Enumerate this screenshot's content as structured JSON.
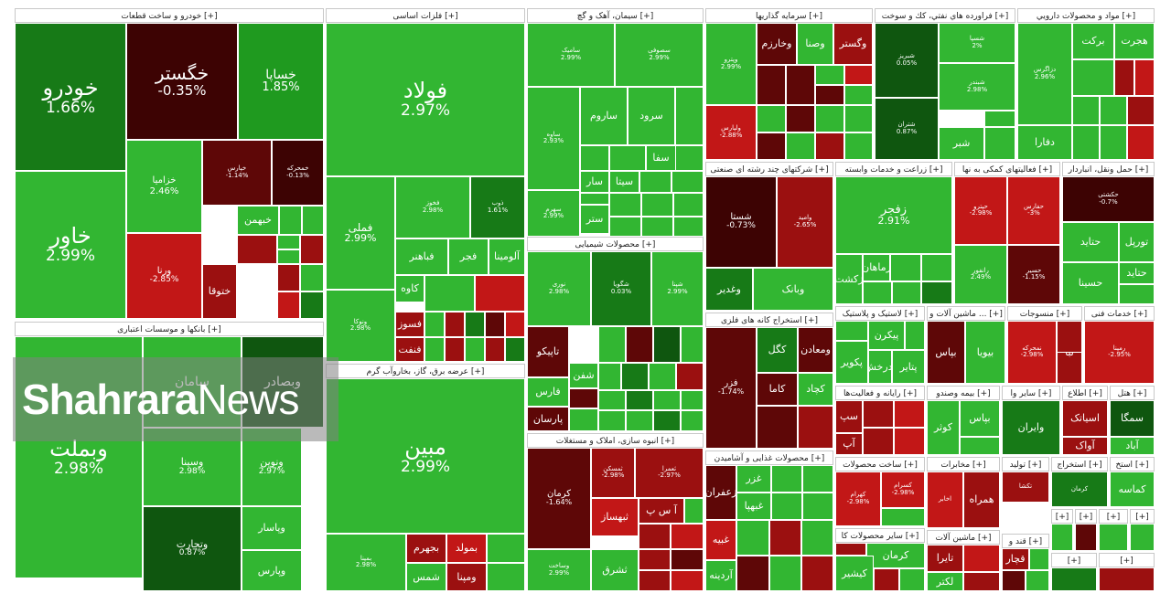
{
  "colors": {
    "g3": "#32b632",
    "g2": "#1f9a1f",
    "g1": "#177a17",
    "g0": "#0f560f",
    "r1": "#c21717",
    "r2": "#9b1010",
    "r3": "#5e0707",
    "r4": "#3d0303"
  },
  "watermark": {
    "bold": "Shahrara",
    "regular": "News"
  },
  "sectors": [
    {
      "header": "خودرو و ساخت قطعات [+]",
      "tiles": [
        {
          "name": "خودرو",
          "pct": "1.66%",
          "color": "g1"
        },
        {
          "name": "خاور",
          "pct": "2.99%",
          "color": "g3"
        },
        {
          "name": "خگستر",
          "pct": "-0.35%",
          "color": "r4"
        },
        {
          "name": "خساپا",
          "pct": "1.85%",
          "color": "g2"
        },
        {
          "name": "خزامیا",
          "pct": "2.46%",
          "color": "g3"
        },
        {
          "name": "خپارس",
          "pct": "-1.14%",
          "color": "r3"
        },
        {
          "name": "خمحرکه",
          "pct": "-0.13%",
          "color": "r4"
        },
        {
          "name": "ورنا",
          "pct": "-2.85%",
          "color": "r1"
        },
        {
          "name": "ختوقا",
          "pct": "",
          "color": "r2"
        },
        {
          "name": "خبهمن",
          "pct": "",
          "color": "g3"
        }
      ]
    },
    {
      "header": "بانکها و موسسات اعتباری [+]",
      "tiles": [
        {
          "name": "وبملت",
          "pct": "2.98%",
          "color": "g3"
        },
        {
          "name": "سامان",
          "pct": "",
          "color": "g3"
        },
        {
          "name": "وبصادر",
          "pct": "",
          "color": "g0"
        },
        {
          "name": "وسینا",
          "pct": "2.98%",
          "color": "g3"
        },
        {
          "name": "ونوین",
          "pct": "2.97%",
          "color": "g3"
        },
        {
          "name": "وتجارت",
          "pct": "0.87%",
          "color": "g0"
        },
        {
          "name": "وپاسار",
          "pct": "",
          "color": "g3"
        },
        {
          "name": "وپارس",
          "pct": "",
          "color": "g3"
        }
      ]
    },
    {
      "header": "فلزات اساسی [+]",
      "tiles": [
        {
          "name": "فولاد",
          "pct": "2.97%",
          "color": "g3"
        },
        {
          "name": "فملی",
          "pct": "2.99%",
          "color": "g3"
        },
        {
          "name": "فخوز",
          "pct": "2.98%",
          "color": "g3"
        },
        {
          "name": "ذوب",
          "pct": "1.61%",
          "color": "g1"
        },
        {
          "name": "ونوکا",
          "pct": "2.98%",
          "color": "g3"
        },
        {
          "name": "فباهنر",
          "pct": "",
          "color": "g3"
        },
        {
          "name": "فجر",
          "pct": "",
          "color": "g3"
        },
        {
          "name": "آلومینا",
          "pct": "",
          "color": "g3"
        },
        {
          "name": "کاوه",
          "pct": "",
          "color": "g3"
        },
        {
          "name": "فسوز",
          "pct": "",
          "color": "r2"
        },
        {
          "name": "فنفت",
          "pct": "",
          "color": "r2"
        }
      ]
    },
    {
      "header": "سیمان، آهک و گچ [+]",
      "tiles": [
        {
          "name": "سامیک",
          "pct": "2.99%",
          "color": "g3"
        },
        {
          "name": "سصوفی",
          "pct": "2.99%",
          "color": "g3"
        },
        {
          "name": "ساوه",
          "pct": "2.93%",
          "color": "g3"
        },
        {
          "name": "ساروم",
          "pct": "",
          "color": "g3"
        },
        {
          "name": "سرود",
          "pct": "",
          "color": "g3"
        },
        {
          "name": "سفا",
          "pct": "",
          "color": "g3"
        },
        {
          "name": "سیتا",
          "pct": "",
          "color": "g3"
        },
        {
          "name": "سار",
          "pct": "",
          "color": "g3"
        },
        {
          "name": "ستر",
          "pct": "",
          "color": "g3"
        },
        {
          "name": "سهرم",
          "pct": "2.99%",
          "color": "g3"
        }
      ]
    },
    {
      "header": "محصولات شیمیایی [+]",
      "tiles": [
        {
          "name": "نوری",
          "pct": "2.98%",
          "color": "g3"
        },
        {
          "name": "شگویا",
          "pct": "0.03%",
          "color": "g1"
        },
        {
          "name": "شپنا",
          "pct": "2.99%",
          "color": "g3"
        },
        {
          "name": "تاپیکو",
          "pct": "",
          "color": "r3"
        },
        {
          "name": "شفن",
          "pct": "",
          "color": "g3"
        },
        {
          "name": "فارس",
          "pct": "",
          "color": "g3"
        },
        {
          "name": "پارسان",
          "pct": "",
          "color": "r3"
        }
      ]
    },
    {
      "header": "عرضه برق، گاز، بخاروآب گرم [+]",
      "tiles": [
        {
          "name": "مبین",
          "pct": "2.99%",
          "color": "g3"
        },
        {
          "name": "بمپنا",
          "pct": "2.98%",
          "color": "g3"
        },
        {
          "name": "بجهرم",
          "pct": "",
          "color": "r2"
        },
        {
          "name": "بمولد",
          "pct": "",
          "color": "r1"
        },
        {
          "name": "شمس",
          "pct": "",
          "color": "g3"
        },
        {
          "name": "ومپنا",
          "pct": "",
          "color": "r2"
        }
      ]
    },
    {
      "header": "انبوه سازی، املاک و مستغلات [+]",
      "tiles": [
        {
          "name": "کرمان",
          "pct": "-1.64%",
          "color": "r3"
        },
        {
          "name": "ثمسکن",
          "pct": "-2.98%",
          "color": "r2"
        },
        {
          "name": "ثعمرا",
          "pct": "-2.97%",
          "color": "r2"
        },
        {
          "name": "ثبهساز",
          "pct": "",
          "color": "r1"
        },
        {
          "name": "آ س پ",
          "pct": "",
          "color": "r2"
        },
        {
          "name": "ثشرق",
          "pct": "",
          "color": "g3"
        },
        {
          "name": "وساخت",
          "pct": "2.99%",
          "color": "g3"
        }
      ]
    },
    {
      "header": "سرمایه گذاریها [+]",
      "tiles": [
        {
          "name": "وپترو",
          "pct": "2.99%",
          "color": "g3"
        },
        {
          "name": "وخارزم",
          "pct": "",
          "color": "r3"
        },
        {
          "name": "وصنا",
          "pct": "",
          "color": "g3"
        },
        {
          "name": "وگستر",
          "pct": "",
          "color": "r2"
        },
        {
          "name": "ولپارس",
          "pct": "-2.88%",
          "color": "r1"
        }
      ]
    },
    {
      "header": "فراورده هاي نفتي، كك و سوخت [+]",
      "tiles": [
        {
          "name": "شبریز",
          "pct": "0.05%",
          "color": "g0"
        },
        {
          "name": "شسپا",
          "pct": "2%",
          "color": "g3"
        },
        {
          "name": "شبندر",
          "pct": "2.98%",
          "color": "g3"
        },
        {
          "name": "شتران",
          "pct": "0.87%",
          "color": "g0"
        },
        {
          "name": "شبر",
          "pct": "",
          "color": "g3"
        }
      ]
    },
    {
      "header": "مواد و محصولات دارويي [+]",
      "tiles": [
        {
          "name": "هجرت",
          "pct": "",
          "color": "g3"
        },
        {
          "name": "برکت",
          "pct": "",
          "color": "g3"
        },
        {
          "name": "دزاگرس",
          "pct": "2.96%",
          "color": "g3"
        },
        {
          "name": "دفارا",
          "pct": "",
          "color": "g3"
        }
      ]
    },
    {
      "header": "شرکتهای چند رشته ای صنعتی [+]",
      "tiles": [
        {
          "name": "شستا",
          "pct": "-0.73%",
          "color": "r4"
        },
        {
          "name": "وامید",
          "pct": "-2.65%",
          "color": "r2"
        },
        {
          "name": "وغدیر",
          "pct": "",
          "color": "g1"
        },
        {
          "name": "وبانک",
          "pct": "",
          "color": "g3"
        }
      ]
    },
    {
      "header": "زراعت و خدمات وابسته [+]",
      "tiles": [
        {
          "name": "زفجر",
          "pct": "2.91%",
          "color": "g3"
        },
        {
          "name": "زماهان",
          "pct": "",
          "color": "g3"
        },
        {
          "name": "زکشت",
          "pct": "",
          "color": "g3"
        }
      ]
    },
    {
      "header": "فعالیتهای کمکی به نها [+]",
      "tiles": [
        {
          "name": "حپترو",
          "pct": "-2.98%",
          "color": "r1"
        },
        {
          "name": "حفارس",
          "pct": "-3%",
          "color": "r1"
        },
        {
          "name": "رانفور",
          "pct": "2.49%",
          "color": "g3"
        },
        {
          "name": "حسیر",
          "pct": "-1.15%",
          "color": "r3"
        }
      ]
    },
    {
      "header": "حمل ونقل، انباردار [+]",
      "tiles": [
        {
          "name": "حکشتی",
          "pct": "-0.7%",
          "color": "r4"
        },
        {
          "name": "حتاید",
          "pct": "",
          "color": "g3"
        },
        {
          "name": "تورپل",
          "pct": "",
          "color": "g3"
        },
        {
          "name": "حتاید",
          "pct": "",
          "color": "g3"
        },
        {
          "name": "حسینا",
          "pct": "",
          "color": "g3"
        }
      ]
    },
    {
      "header": "استخراج کانه های فلزی [+]",
      "tiles": [
        {
          "name": "فزر",
          "pct": "-1.74%",
          "color": "r3"
        },
        {
          "name": "کگل",
          "pct": "",
          "color": "g1"
        },
        {
          "name": "ومعادن",
          "pct": "",
          "color": "r3"
        },
        {
          "name": "کاما",
          "pct": "",
          "color": "r3"
        },
        {
          "name": "کچاد",
          "pct": "",
          "color": "g3"
        }
      ]
    },
    {
      "header": "لاستیک و پلاستیک [+]",
      "tiles": [
        {
          "name": "پکویر",
          "pct": "",
          "color": "g3"
        },
        {
          "name": "پیکرن",
          "pct": "",
          "color": "g3"
        },
        {
          "name": "پتایر",
          "pct": "",
          "color": "g3"
        },
        {
          "name": "پدرخش",
          "pct": "",
          "color": "g3"
        }
      ]
    },
    {
      "header": "ماشین آلات و ... [+]",
      "tiles": [
        {
          "name": "بپاس",
          "pct": "",
          "color": "r3"
        },
        {
          "name": "بیویا",
          "pct": "",
          "color": "g3"
        }
      ]
    },
    {
      "header": "منسوجات [+]",
      "tiles": [
        {
          "name": "نمحرکه",
          "pct": "-2.98%",
          "color": "r1"
        },
        {
          "name": "نبا",
          "pct": "",
          "color": "r2"
        }
      ]
    },
    {
      "header": "خدمات فنی [+]",
      "tiles": [
        {
          "name": "رمپنا",
          "pct": "-2.95%",
          "color": "r1"
        }
      ]
    },
    {
      "header": "رایانه و فعالیت‌ها [+]",
      "tiles": [
        {
          "name": "سپ",
          "pct": "",
          "color": "r2"
        },
        {
          "name": "آپ",
          "pct": "",
          "color": "r2"
        }
      ]
    },
    {
      "header": "بیمه وصندو [+]",
      "tiles": [
        {
          "name": "کوثر",
          "pct": "",
          "color": "g3"
        },
        {
          "name": "بپاس",
          "pct": "",
          "color": "g3"
        }
      ]
    },
    {
      "header": "سایر وا [+]",
      "tiles": [
        {
          "name": "وایران",
          "pct": "",
          "color": "g1"
        }
      ]
    },
    {
      "header": "اطلاع [+]",
      "tiles": [
        {
          "name": "اسیاتک",
          "pct": "",
          "color": "r2"
        },
        {
          "name": "آواک",
          "pct": "",
          "color": "r2"
        }
      ]
    },
    {
      "header": "هتل [+]",
      "tiles": [
        {
          "name": "سمگا",
          "pct": "",
          "color": "g0"
        },
        {
          "name": "آباد",
          "pct": "",
          "color": "g3"
        }
      ]
    },
    {
      "header": "محصولات غذایی و آشامیدن [+]",
      "tiles": [
        {
          "name": "غزر",
          "pct": "",
          "color": "g3"
        },
        {
          "name": "غبهپا",
          "pct": "",
          "color": "g3"
        },
        {
          "name": "زعفران",
          "pct": "",
          "color": "r3"
        },
        {
          "name": "غبیه",
          "pct": "",
          "color": "r1"
        },
        {
          "name": "آردینه",
          "pct": "",
          "color": "g3"
        }
      ]
    },
    {
      "header": "ساخت محصولات [+]",
      "tiles": [
        {
          "name": "کهرام",
          "pct": "-2.98%",
          "color": "r1"
        },
        {
          "name": "کسرام",
          "pct": "-2.98%",
          "color": "r1"
        }
      ]
    },
    {
      "header": "مخابرات [+]",
      "tiles": [
        {
          "name": "اخابر",
          "pct": "",
          "color": "r1"
        },
        {
          "name": "همراه",
          "pct": "",
          "color": "r2"
        }
      ]
    },
    {
      "header": "تولید [+]",
      "tiles": [
        {
          "name": "تکشا",
          "pct": "",
          "color": "r2"
        }
      ]
    },
    {
      "header": "استخراج [+]",
      "tiles": [
        {
          "name": "کرمان",
          "pct": "",
          "color": "g1"
        }
      ]
    },
    {
      "header": "استخ [+]",
      "tiles": [
        {
          "name": "کماسه",
          "pct": "",
          "color": "g3"
        }
      ]
    },
    {
      "header": "سایر محصولات کا [+]",
      "tiles": [
        {
          "name": "کرمان",
          "pct": "",
          "color": "g3"
        },
        {
          "name": "کیشیر",
          "pct": "",
          "color": "g3"
        }
      ]
    },
    {
      "header": "ماشین آلات [+]",
      "tiles": [
        {
          "name": "تایرا",
          "pct": "",
          "color": "r2"
        },
        {
          "name": "لکتر",
          "pct": "",
          "color": "g3"
        }
      ]
    },
    {
      "header": "قند و [+]",
      "tiles": [
        {
          "name": "قچار",
          "pct": "",
          "color": "r2"
        }
      ]
    },
    {
      "header": "[+]",
      "tiles": []
    },
    {
      "header": "[+]",
      "tiles": []
    },
    {
      "header": "[+]",
      "tiles": []
    },
    {
      "header": "[+]",
      "tiles": []
    },
    {
      "header": "[+]",
      "tiles": []
    },
    {
      "header": "[+]",
      "tiles": []
    }
  ]
}
